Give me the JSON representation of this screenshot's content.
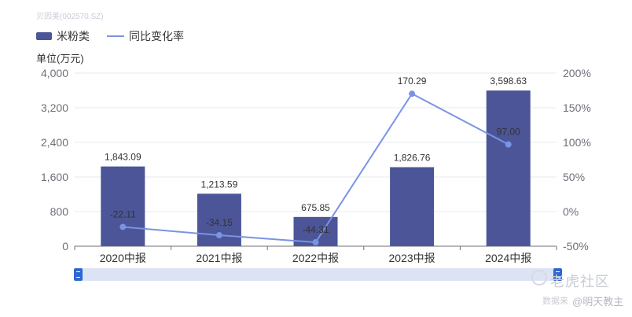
{
  "source_label": "贝因美(002570.SZ)",
  "unit_label": "单位(万元)",
  "colors": {
    "bar": "#4b5597",
    "line": "#7b93e3",
    "axis": "#6e7079",
    "grid": "#e6e9f0"
  },
  "watermark": {
    "brand": "老虎社区",
    "prefix": "数据来",
    "author": "@明天教主"
  },
  "chart_data": {
    "type": "bar",
    "categories": [
      "2020中报",
      "2021中报",
      "2022中报",
      "2023中报",
      "2024中报"
    ],
    "series": [
      {
        "name": "米粉类",
        "type": "bar",
        "axis": "left",
        "values": [
          1843.09,
          1213.59,
          675.85,
          1826.76,
          3598.63
        ],
        "labels": [
          "1,843.09",
          "1,213.59",
          "675.85",
          "1,826.76",
          "3,598.63"
        ]
      },
      {
        "name": "同比变化率",
        "type": "line",
        "axis": "right",
        "values": [
          -22.11,
          -34.15,
          -44.31,
          170.29,
          97.0
        ],
        "labels": [
          "-22.11",
          "-34.15",
          "-44.31",
          "170.29",
          "97.00"
        ]
      }
    ],
    "y_left": {
      "min": 0,
      "max": 4000,
      "ticks": [
        0,
        800,
        1600,
        2400,
        3200,
        4000
      ],
      "tick_labels": [
        "0",
        "800",
        "1,600",
        "2,400",
        "3,200",
        "4,000"
      ]
    },
    "y_right": {
      "min": -50,
      "max": 200,
      "ticks": [
        -50,
        0,
        50,
        100,
        150,
        200
      ],
      "tick_labels": [
        "-50%",
        "0%",
        "50%",
        "100%",
        "150%",
        "200%"
      ]
    },
    "grid": true,
    "legend_position": "top-left"
  }
}
